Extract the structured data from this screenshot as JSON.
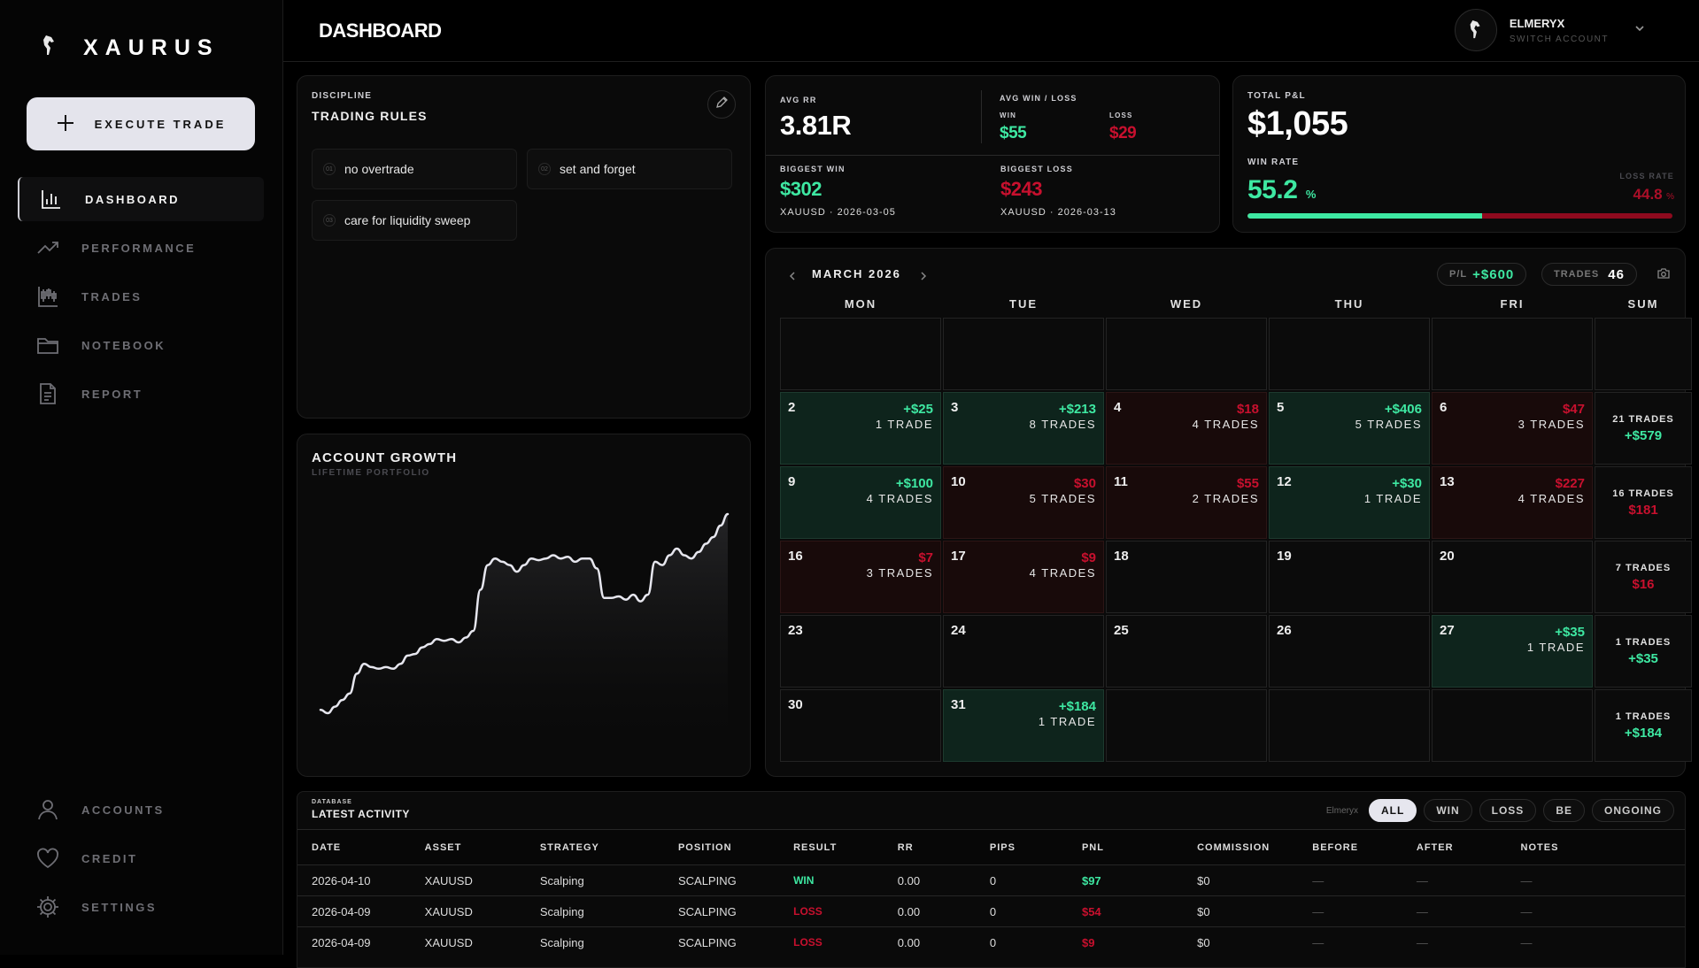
{
  "brand": {
    "name": "XAURUS"
  },
  "sidebar": {
    "execute_label": "EXECUTE TRADE",
    "items": [
      {
        "label": "DASHBOARD",
        "icon": "bar-chart-icon",
        "active": true
      },
      {
        "label": "PERFORMANCE",
        "icon": "trending-up-icon"
      },
      {
        "label": "TRADES",
        "icon": "candlestick-icon"
      },
      {
        "label": "NOTEBOOK",
        "icon": "folder-icon"
      },
      {
        "label": "REPORT",
        "icon": "document-icon"
      }
    ],
    "bottom": [
      {
        "label": "ACCOUNTS",
        "icon": "user-icon"
      },
      {
        "label": "CREDIT",
        "icon": "heart-icon"
      },
      {
        "label": "SETTINGS",
        "icon": "gear-icon"
      }
    ]
  },
  "header": {
    "title": "DASHBOARD",
    "user_name": "ELMERYX",
    "user_sub": "SWITCH ACCOUNT"
  },
  "rules": {
    "overline": "DISCIPLINE",
    "title": "TRADING RULES",
    "items": [
      {
        "num": "01",
        "text": "no overtrade"
      },
      {
        "num": "02",
        "text": "set and forget"
      },
      {
        "num": "03",
        "text": "care for liquidity sweep"
      }
    ]
  },
  "growth": {
    "title": "ACCOUNT GROWTH",
    "subtitle": "LIFETIME PORTFOLIO",
    "values": [
      12,
      10,
      14,
      18,
      22,
      34,
      40,
      38,
      37,
      38,
      37,
      40,
      45,
      46,
      50,
      52,
      55,
      54,
      55,
      53,
      56,
      60,
      85,
      100,
      104,
      102,
      100,
      96,
      100,
      104,
      103,
      104,
      106,
      104,
      105,
      102,
      104,
      104,
      98,
      80,
      80,
      81,
      79,
      82,
      78,
      82,
      102,
      100,
      106,
      110,
      106,
      104,
      108,
      113,
      117,
      124,
      131
    ]
  },
  "stats": {
    "avg_rr_label": "AVG RR",
    "avg_rr": "3.81R",
    "avg_wl_label": "AVG WIN / LOSS",
    "win_label": "WIN",
    "win": "$55",
    "loss_label": "LOSS",
    "loss": "$29",
    "biggest_win_label": "BIGGEST WIN",
    "biggest_win": "$302",
    "biggest_win_meta": "XAUUSD · 2026-03-05",
    "biggest_loss_label": "BIGGEST LOSS",
    "biggest_loss": "$243",
    "biggest_loss_meta": "XAUUSD · 2026-03-13"
  },
  "pnl": {
    "label": "TOTAL P&L",
    "value": "$1,055",
    "win_rate_label": "WIN RATE",
    "win_rate": "55.2",
    "pct": "%",
    "loss_rate_label": "LOSS RATE",
    "loss_rate": "44.8",
    "win_fraction": 0.552
  },
  "calendar": {
    "month": "MARCH 2026",
    "pl_label": "P/L",
    "pl_value": "+$600",
    "trades_label": "TRADES",
    "trades_value": "46",
    "days": [
      "MON",
      "TUE",
      "WED",
      "THU",
      "FRI",
      "SUM"
    ],
    "weeks": [
      {
        "cells": [
          {},
          {},
          {},
          {},
          {}
        ],
        "sum": null
      },
      {
        "cells": [
          {
            "d": "2",
            "p": "+$25",
            "t": "1 TRADE",
            "r": "win"
          },
          {
            "d": "3",
            "p": "+$213",
            "t": "8 TRADES",
            "r": "win"
          },
          {
            "d": "4",
            "p": "$18",
            "t": "4 TRADES",
            "r": "loss"
          },
          {
            "d": "5",
            "p": "+$406",
            "t": "5 TRADES",
            "r": "win"
          },
          {
            "d": "6",
            "p": "$47",
            "t": "3 TRADES",
            "r": "loss"
          }
        ],
        "sum": {
          "t": "21 TRADES",
          "p": "+$579",
          "r": "win"
        }
      },
      {
        "cells": [
          {
            "d": "9",
            "p": "+$100",
            "t": "4 TRADES",
            "r": "win"
          },
          {
            "d": "10",
            "p": "$30",
            "t": "5 TRADES",
            "r": "loss"
          },
          {
            "d": "11",
            "p": "$55",
            "t": "2 TRADES",
            "r": "loss"
          },
          {
            "d": "12",
            "p": "+$30",
            "t": "1 TRADE",
            "r": "win"
          },
          {
            "d": "13",
            "p": "$227",
            "t": "4 TRADES",
            "r": "loss"
          }
        ],
        "sum": {
          "t": "16 TRADES",
          "p": "$181",
          "r": "loss"
        }
      },
      {
        "cells": [
          {
            "d": "16",
            "p": "$7",
            "t": "3 TRADES",
            "r": "loss"
          },
          {
            "d": "17",
            "p": "$9",
            "t": "4 TRADES",
            "r": "loss"
          },
          {
            "d": "18"
          },
          {
            "d": "19"
          },
          {
            "d": "20"
          }
        ],
        "sum": {
          "t": "7 TRADES",
          "p": "$16",
          "r": "loss"
        }
      },
      {
        "cells": [
          {
            "d": "23"
          },
          {
            "d": "24"
          },
          {
            "d": "25"
          },
          {
            "d": "26"
          },
          {
            "d": "27",
            "p": "+$35",
            "t": "1 TRADE",
            "r": "win"
          }
        ],
        "sum": {
          "t": "1 TRADES",
          "p": "+$35",
          "r": "win"
        }
      },
      {
        "cells": [
          {
            "d": "30"
          },
          {
            "d": "31",
            "p": "+$184",
            "t": "1 TRADE",
            "r": "win"
          },
          {},
          {},
          {}
        ],
        "sum": {
          "t": "1 TRADES",
          "p": "+$184",
          "r": "win"
        }
      }
    ]
  },
  "activity": {
    "overline": "DATABASE",
    "title": "LATEST ACTIVITY",
    "account": "Elmeryx",
    "filters": [
      "ALL",
      "WIN",
      "LOSS",
      "BE",
      "ONGOING"
    ],
    "columns": [
      "DATE",
      "ASSET",
      "STRATEGY",
      "POSITION",
      "RESULT",
      "RR",
      "PIPS",
      "PNL",
      "COMMISSION",
      "BEFORE",
      "AFTER",
      "NOTES"
    ],
    "rows": [
      {
        "date": "2026-04-10",
        "asset": "XAUUSD",
        "strategy": "Scalping",
        "position": "SCALPING",
        "result": "WIN",
        "rr": "0.00",
        "pips": "0",
        "pnl": "$97",
        "commission": "$0",
        "before": "—",
        "after": "—",
        "notes": "—",
        "r": "win"
      },
      {
        "date": "2026-04-09",
        "asset": "XAUUSD",
        "strategy": "Scalping",
        "position": "SCALPING",
        "result": "LOSS",
        "rr": "0.00",
        "pips": "0",
        "pnl": "$54",
        "commission": "$0",
        "before": "—",
        "after": "—",
        "notes": "—",
        "r": "loss"
      },
      {
        "date": "2026-04-09",
        "asset": "XAUUSD",
        "strategy": "Scalping",
        "position": "SCALPING",
        "result": "LOSS",
        "rr": "0.00",
        "pips": "0",
        "pnl": "$9",
        "commission": "$0",
        "before": "—",
        "after": "—",
        "notes": "—",
        "r": "loss"
      }
    ]
  }
}
